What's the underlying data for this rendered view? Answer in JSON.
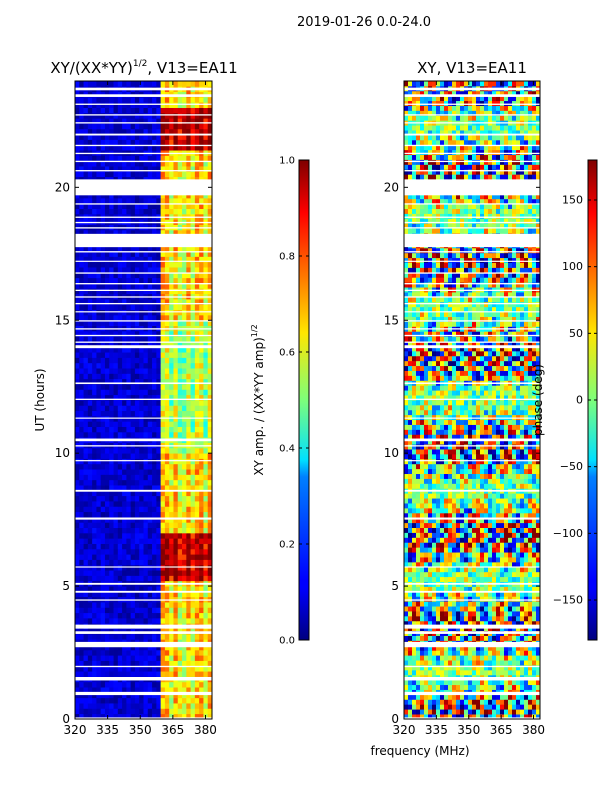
{
  "page": {
    "suptitle": "2019-01-26 0.0-24.0",
    "shared_xlabel": "frequency (MHz)"
  },
  "chart_data": [
    {
      "type": "heatmap",
      "title_main": "XY/(XX*YY)",
      "title_sup": "1/2",
      "title_rest": ", V13=EA11",
      "ylabel": "UT (hours)",
      "xlim": [
        320,
        383
      ],
      "ylim": [
        0,
        24
      ],
      "xticks": [
        "320",
        "335",
        "350",
        "365",
        "380"
      ],
      "xtick_values": [
        320,
        335,
        350,
        365,
        380
      ],
      "yticks": [
        "0",
        "5",
        "10",
        "15",
        "20"
      ],
      "ytick_values": [
        0,
        5,
        10,
        15,
        20
      ],
      "data_band_mhz": [
        360,
        382
      ],
      "notes": "Normalized XY amplitude; mostly near 0 below ~359 MHz, enhanced values 0.5-0.9 in 361-380 MHz band, strongest around 5.2-7 h and 21.3-23 h.",
      "colorbar": {
        "label_main": "XY amp. / (XX*YY amp)",
        "label_sup": "1/2",
        "range": [
          0.0,
          1.0
        ],
        "ticks": [
          "0.0",
          "0.2",
          "0.4",
          "0.6",
          "0.8",
          "1.0"
        ],
        "tick_values": [
          0.0,
          0.2,
          0.4,
          0.6,
          0.8,
          1.0
        ],
        "colormap": "jet"
      }
    },
    {
      "type": "heatmap",
      "title": "XY, V13=EA11",
      "xlim": [
        320,
        383
      ],
      "ylim": [
        0,
        24
      ],
      "xticks": [
        "320",
        "335",
        "350",
        "365",
        "380"
      ],
      "xtick_values": [
        320,
        335,
        350,
        365,
        380
      ],
      "yticks": [
        "0",
        "5",
        "10",
        "15",
        "20"
      ],
      "ytick_values": [
        0,
        5,
        10,
        15,
        20
      ],
      "notes": "XY phase; values span the full -180 to 180 deg range across all frequencies.",
      "colorbar": {
        "label": "phase (deg)",
        "range": [
          -180,
          180
        ],
        "ticks": [
          "−150",
          "−100",
          "−50",
          "0",
          "50",
          "100",
          "150"
        ],
        "tick_values": [
          -150,
          -100,
          -50,
          0,
          50,
          100,
          150
        ],
        "colormap": "jet"
      }
    }
  ],
  "gaps_hours": [
    [
      0.0,
      0.06
    ],
    [
      0.9,
      1.02
    ],
    [
      1.45,
      1.58
    ],
    [
      1.95,
      2.0
    ],
    [
      2.7,
      2.9
    ],
    [
      3.2,
      3.3
    ],
    [
      3.4,
      3.55
    ],
    [
      4.45,
      4.5
    ],
    [
      4.75,
      4.82
    ],
    [
      5.05,
      5.12
    ],
    [
      5.7,
      5.74
    ],
    [
      7.5,
      7.58
    ],
    [
      8.55,
      8.62
    ],
    [
      9.7,
      9.74
    ],
    [
      10.25,
      10.3
    ],
    [
      10.45,
      10.55
    ],
    [
      11.3,
      11.34
    ],
    [
      12.0,
      12.05
    ],
    [
      12.6,
      12.66
    ],
    [
      13.95,
      14.06
    ],
    [
      14.15,
      14.2
    ],
    [
      14.4,
      14.45
    ],
    [
      14.65,
      14.7
    ],
    [
      14.95,
      15.0
    ],
    [
      15.3,
      15.34
    ],
    [
      15.6,
      15.65
    ],
    [
      15.85,
      15.9
    ],
    [
      16.1,
      16.15
    ],
    [
      16.35,
      16.4
    ],
    [
      16.75,
      16.8
    ],
    [
      17.2,
      17.24
    ],
    [
      17.55,
      17.6
    ],
    [
      17.75,
      18.25
    ],
    [
      18.45,
      18.5
    ],
    [
      18.65,
      18.7
    ],
    [
      18.85,
      18.9
    ],
    [
      19.35,
      19.4
    ],
    [
      19.7,
      20.3
    ],
    [
      20.6,
      20.65
    ],
    [
      20.95,
      21.0
    ],
    [
      21.25,
      21.3
    ],
    [
      21.55,
      21.6
    ],
    [
      21.95,
      22.02
    ],
    [
      22.4,
      22.45
    ],
    [
      22.7,
      22.75
    ],
    [
      23.1,
      23.15
    ],
    [
      23.4,
      23.5
    ],
    [
      23.65,
      23.75
    ]
  ]
}
